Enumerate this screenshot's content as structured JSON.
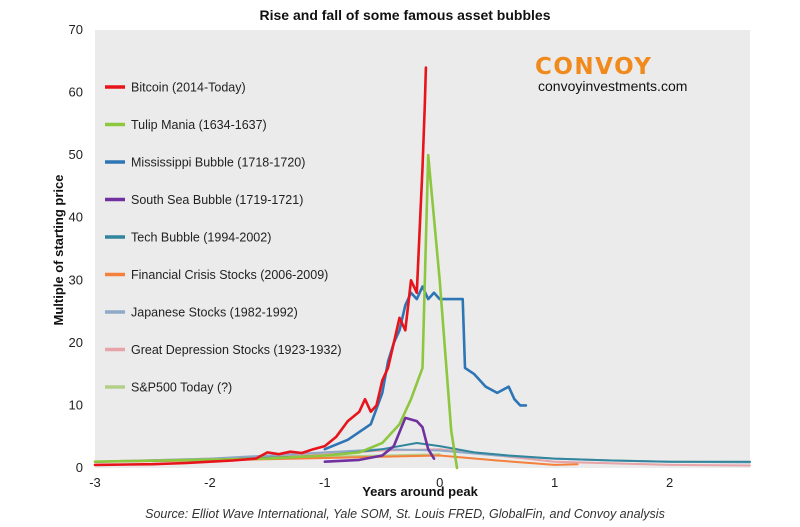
{
  "chart_data": {
    "type": "line",
    "title": "Rise and fall of some famous asset bubbles",
    "xlabel": "Years around peak",
    "ylabel": "Multiple of starting price",
    "xlim": [
      -3,
      2.7
    ],
    "ylim": [
      0,
      70
    ],
    "x_ticks": [
      -3,
      -2,
      -1,
      0,
      1,
      2
    ],
    "y_ticks": [
      0,
      10,
      20,
      30,
      40,
      50,
      60,
      70
    ],
    "grid": false,
    "legend_position": "top-left",
    "source": "Source: Elliot Wave International, Yale SOM, St. Louis FRED, GlobalFin, and Convoy analysis",
    "brand": {
      "name": "CONVOY",
      "url": "convoyinvestments.com",
      "color": "#f08a1c"
    },
    "series": [
      {
        "name": "Bitcoin (2014-Today)",
        "color": "#e8141b",
        "x": [
          -3,
          -2.5,
          -2.2,
          -2.0,
          -1.8,
          -1.6,
          -1.5,
          -1.4,
          -1.3,
          -1.2,
          -1.1,
          -1.0,
          -0.9,
          -0.8,
          -0.7,
          -0.65,
          -0.6,
          -0.55,
          -0.5,
          -0.45,
          -0.4,
          -0.35,
          -0.3,
          -0.25,
          -0.2,
          -0.17,
          -0.15,
          -0.13,
          -0.12
        ],
        "y": [
          0.5,
          0.6,
          0.8,
          1.0,
          1.2,
          1.5,
          2.5,
          2.2,
          2.6,
          2.4,
          3.0,
          3.5,
          5.0,
          7.5,
          9.0,
          11.0,
          9.0,
          10.0,
          14.0,
          16.0,
          20.0,
          24.0,
          22.0,
          30.0,
          28.0,
          40.0,
          48.0,
          58.0,
          64.0
        ]
      },
      {
        "name": "Tulip Mania (1634-1637)",
        "color": "#8dc63f",
        "x": [
          -3,
          -1.5,
          -1.0,
          -0.7,
          -0.5,
          -0.35,
          -0.25,
          -0.15,
          -0.1,
          0.0,
          0.1,
          0.15
        ],
        "y": [
          1.0,
          1.5,
          2.0,
          2.5,
          4.0,
          7.0,
          11.0,
          16.0,
          50.0,
          30.0,
          6.0,
          0.0
        ]
      },
      {
        "name": "Mississippi Bubble (1718-1720)",
        "color": "#2e75b6",
        "x": [
          -1.0,
          -0.8,
          -0.6,
          -0.5,
          -0.45,
          -0.4,
          -0.35,
          -0.3,
          -0.25,
          -0.2,
          -0.15,
          -0.1,
          -0.05,
          0.0,
          0.1,
          0.2,
          0.22,
          0.3,
          0.4,
          0.5,
          0.6,
          0.65,
          0.7,
          0.75
        ],
        "y": [
          3.0,
          4.5,
          7.0,
          12.0,
          17.0,
          20.0,
          22.0,
          26.0,
          28.0,
          27.0,
          29.0,
          27.0,
          28.0,
          27.0,
          27.0,
          27.0,
          16.0,
          15.0,
          13.0,
          12.0,
          13.0,
          11.0,
          10.0,
          10.0
        ]
      },
      {
        "name": "South Sea Bubble (1719-1721)",
        "color": "#7030a0",
        "x": [
          -1.0,
          -0.7,
          -0.5,
          -0.4,
          -0.3,
          -0.2,
          -0.15,
          -0.1,
          -0.05
        ],
        "y": [
          1.0,
          1.3,
          2.0,
          3.5,
          8.0,
          7.5,
          6.5,
          3.0,
          1.5
        ]
      },
      {
        "name": "Tech Bubble (1994-2002)",
        "color": "#31859c",
        "x": [
          -3,
          -2.0,
          -1.0,
          -0.5,
          -0.2,
          0.0,
          0.3,
          0.6,
          1.0,
          1.5,
          2.0,
          2.7
        ],
        "y": [
          1.0,
          1.3,
          2.0,
          3.0,
          4.0,
          3.5,
          2.5,
          2.0,
          1.5,
          1.2,
          1.0,
          1.0
        ]
      },
      {
        "name": "Financial Crisis Stocks (2006-2009)",
        "color": "#f4803b",
        "x": [
          -3,
          -2.0,
          -1.0,
          0.0,
          0.5,
          1.0,
          1.2
        ],
        "y": [
          1.0,
          1.2,
          1.6,
          2.0,
          1.2,
          0.5,
          0.6
        ]
      },
      {
        "name": "Japanese Stocks (1982-1992)",
        "color": "#8ea9c8",
        "x": [
          -3,
          -2.0,
          -1.0,
          -0.5,
          0.0,
          0.5,
          1.0,
          1.5,
          2.0,
          2.7
        ],
        "y": [
          1.0,
          1.5,
          2.5,
          3.0,
          2.8,
          2.0,
          1.5,
          1.2,
          1.0,
          0.9
        ]
      },
      {
        "name": "Great Depression Stocks (1923-1932)",
        "color": "#e6a3a8",
        "x": [
          -3,
          -2.0,
          -1.0,
          -0.5,
          0.0,
          0.5,
          1.0,
          2.0,
          2.7
        ],
        "y": [
          1.0,
          1.5,
          2.2,
          2.8,
          3.0,
          2.0,
          1.0,
          0.5,
          0.4
        ]
      },
      {
        "name": "S&P500 Today (?)",
        "color": "#b4cf8a",
        "x": [
          -3,
          -2.0,
          -1.0,
          -0.5,
          0.0
        ],
        "y": [
          1.0,
          1.4,
          1.8,
          2.0,
          2.2
        ]
      }
    ]
  }
}
